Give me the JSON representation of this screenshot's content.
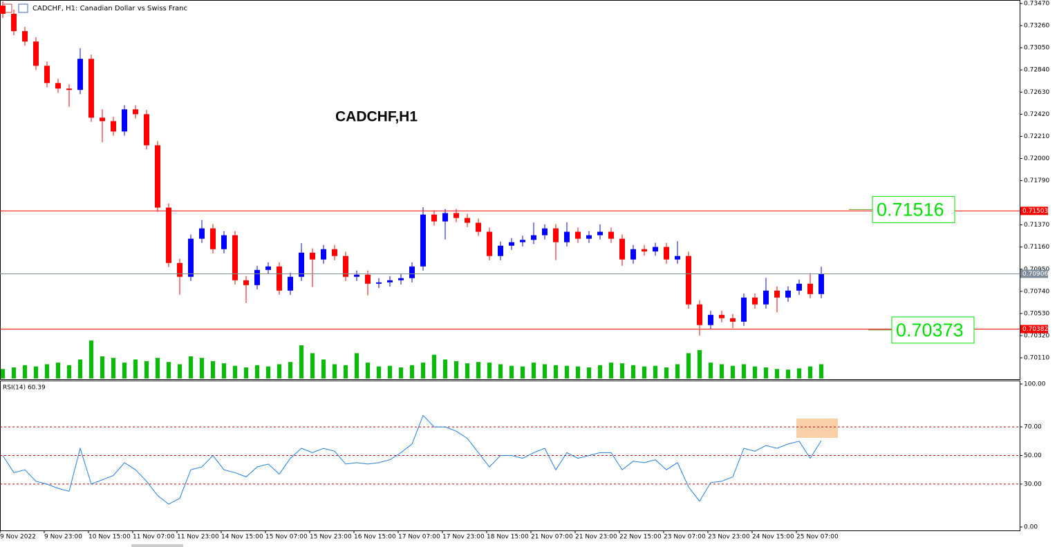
{
  "chart_data": [
    {
      "type": "candlestick",
      "title": "CADCHF, H1:  Canadian Dollar vs Swiss Franc",
      "annotation": "CADCHF,H1",
      "categories": [
        "9 Nov 2022",
        null,
        null,
        null,
        "9 Nov 23:00",
        null,
        null,
        null,
        "10 Nov 15:00",
        null,
        null,
        null,
        "11 Nov 07:00",
        null,
        null,
        null,
        "11 Nov 23:00",
        null,
        null,
        null,
        "14 Nov 15:00",
        null,
        null,
        null,
        "15 Nov 07:00",
        null,
        null,
        null,
        "15 Nov 23:00",
        null,
        null,
        null,
        "16 Nov 15:00",
        null,
        null,
        null,
        "17 Nov 07:00",
        null,
        null,
        null,
        "17 Nov 23:00",
        null,
        null,
        null,
        "18 Nov 15:00",
        null,
        null,
        null,
        "21 Nov 07:00",
        null,
        null,
        null,
        "21 Nov 23:00",
        null,
        null,
        null,
        "22 Nov 15:00",
        null,
        null,
        null,
        "23 Nov 07:00",
        null,
        null,
        null,
        "23 Nov 23:00",
        null,
        null,
        null,
        "24 Nov 15:00",
        null,
        null,
        null,
        "25 Nov 07:00",
        null,
        null
      ],
      "open": [
        0.7345,
        0.73372,
        0.73208,
        0.73109,
        0.72879,
        0.72715,
        0.72663,
        0.7265,
        0.72945,
        0.72387,
        0.72354,
        0.72256,
        0.72466,
        0.7242,
        0.72125,
        0.71534,
        0.71009,
        0.70878,
        0.71239,
        0.71337,
        0.7114,
        0.71272,
        0.70845,
        0.70799,
        0.70943,
        0.70976,
        0.70747,
        0.70878,
        0.71107,
        0.71042,
        0.7114,
        0.71075,
        0.70878,
        0.70898,
        0.70812,
        0.70825,
        0.70845,
        0.70865,
        0.70976,
        0.71468,
        0.71403,
        0.71482,
        0.71436,
        0.7139,
        0.71305,
        0.71075,
        0.71173,
        0.71206,
        0.71228,
        0.71272,
        0.71337,
        0.71206,
        0.71305,
        0.71239,
        0.71272,
        0.71305,
        0.71239,
        0.71042,
        0.7114,
        0.71118,
        0.71161,
        0.71042,
        0.71075,
        0.70616,
        0.7042,
        0.70517,
        0.70485,
        0.70452,
        0.70681,
        0.70616,
        0.70747,
        0.70681,
        0.70747,
        0.70812,
        0.70714
      ],
      "high": [
        0.7349,
        0.73412,
        0.73248,
        0.73149,
        0.72919,
        0.72755,
        0.72703,
        0.73045,
        0.72985,
        0.72467,
        0.72394,
        0.72506,
        0.72506,
        0.7246,
        0.72165,
        0.71574,
        0.71049,
        0.71279,
        0.71417,
        0.71377,
        0.71312,
        0.71312,
        0.70885,
        0.70983,
        0.71016,
        0.71016,
        0.70918,
        0.71197,
        0.71147,
        0.7118,
        0.7118,
        0.71115,
        0.70938,
        0.70938,
        0.70865,
        0.70885,
        0.70905,
        0.71016,
        0.71538,
        0.71508,
        0.71522,
        0.71522,
        0.71476,
        0.7143,
        0.71345,
        0.71213,
        0.71246,
        0.71268,
        0.71392,
        0.71377,
        0.71377,
        0.71395,
        0.71345,
        0.71312,
        0.71375,
        0.71345,
        0.71279,
        0.7118,
        0.7118,
        0.71201,
        0.71201,
        0.71215,
        0.71115,
        0.70656,
        0.70557,
        0.70557,
        0.70525,
        0.70721,
        0.70721,
        0.70867,
        0.70787,
        0.70787,
        0.70852,
        0.70912,
        0.70974
      ],
      "low": [
        0.73332,
        0.73168,
        0.73069,
        0.72839,
        0.72675,
        0.72623,
        0.7249,
        0.7261,
        0.72347,
        0.72154,
        0.72216,
        0.72216,
        0.7238,
        0.72085,
        0.71494,
        0.70969,
        0.70708,
        0.70838,
        0.71199,
        0.711,
        0.711,
        0.70805,
        0.70629,
        0.70759,
        0.70903,
        0.70707,
        0.70707,
        0.70838,
        0.70782,
        0.71002,
        0.71035,
        0.70838,
        0.70838,
        0.70702,
        0.70772,
        0.70785,
        0.70805,
        0.70825,
        0.70936,
        0.71363,
        0.71233,
        0.71396,
        0.7135,
        0.71265,
        0.71035,
        0.71035,
        0.71133,
        0.71166,
        0.71188,
        0.71232,
        0.71036,
        0.71166,
        0.71199,
        0.71199,
        0.71232,
        0.71199,
        0.70982,
        0.71002,
        0.71078,
        0.71078,
        0.71002,
        0.71002,
        0.70576,
        0.70321,
        0.7038,
        0.70445,
        0.70392,
        0.70412,
        0.70576,
        0.70576,
        0.70541,
        0.70641,
        0.70707,
        0.70674,
        0.70674
      ],
      "close": [
        0.73372,
        0.73208,
        0.73109,
        0.72879,
        0.72715,
        0.72663,
        0.7265,
        0.72945,
        0.72387,
        0.72354,
        0.72256,
        0.72466,
        0.7242,
        0.72125,
        0.71534,
        0.71009,
        0.70878,
        0.71239,
        0.71337,
        0.7114,
        0.71272,
        0.70845,
        0.70799,
        0.70943,
        0.70976,
        0.70747,
        0.70878,
        0.71107,
        0.71042,
        0.7114,
        0.71075,
        0.70878,
        0.70898,
        0.70812,
        0.70825,
        0.70845,
        0.70865,
        0.70976,
        0.71468,
        0.71403,
        0.71482,
        0.71436,
        0.7139,
        0.71305,
        0.71075,
        0.71173,
        0.71206,
        0.71228,
        0.71272,
        0.71337,
        0.71206,
        0.71305,
        0.71239,
        0.71272,
        0.71305,
        0.71239,
        0.71042,
        0.7114,
        0.71118,
        0.71161,
        0.71042,
        0.71075,
        0.70616,
        0.7042,
        0.70517,
        0.70485,
        0.70452,
        0.70681,
        0.70616,
        0.70747,
        0.70681,
        0.70747,
        0.70812,
        0.70714,
        0.70904
      ],
      "volume": [
        300,
        350,
        420,
        380,
        450,
        500,
        420,
        600,
        1200,
        700,
        650,
        500,
        600,
        550,
        650,
        520,
        450,
        700,
        650,
        550,
        480,
        400,
        350,
        420,
        380,
        450,
        520,
        1050,
        800,
        600,
        450,
        420,
        800,
        500,
        380,
        400,
        350,
        420,
        500,
        750,
        600,
        550,
        480,
        520,
        500,
        450,
        400,
        380,
        500,
        450,
        420,
        400,
        380,
        350,
        420,
        500,
        480,
        420,
        380,
        400,
        350,
        450,
        800,
        900,
        500,
        450,
        400,
        450,
        380,
        350,
        300,
        280,
        320,
        380,
        450
      ],
      "up_color": "#0000ff",
      "down_color": "#ff0000",
      "volume_color": "#00c000",
      "ylim": [
        0.69907,
        0.73503
      ],
      "yticks": [
        {
          "value": 0.7347,
          "label": "0.73470"
        },
        {
          "value": 0.7326,
          "label": "0.73260"
        },
        {
          "value": 0.7305,
          "label": "0.73050"
        },
        {
          "value": 0.7284,
          "label": "0.72840"
        },
        {
          "value": 0.7263,
          "label": "0.72630"
        },
        {
          "value": 0.7242,
          "label": "0.72420"
        },
        {
          "value": 0.7221,
          "label": "0.72210"
        },
        {
          "value": 0.72,
          "label": "0.72000"
        },
        {
          "value": 0.7179,
          "label": "0.71790"
        },
        {
          "value": 0.7137,
          "label": "0.71370"
        },
        {
          "value": 0.7116,
          "label": "0.71160"
        },
        {
          "value": 0.7095,
          "label": "0.70950"
        },
        {
          "value": 0.7074,
          "label": "0.70740"
        },
        {
          "value": 0.7053,
          "label": "0.70530"
        },
        {
          "value": 0.7032,
          "label": "0.70320"
        },
        {
          "value": 0.7011,
          "label": "0.70110"
        }
      ],
      "levels": [
        0.71503,
        0.70906,
        0.70382
      ],
      "level_colors": [
        "#ff0000",
        "#7f8c9a",
        "#ff0000"
      ],
      "callouts": [
        0.71516,
        0.70373
      ],
      "callout_color": "#00e000"
    },
    {
      "type": "line",
      "title": "RSI(14) 60.39",
      "values": [
        50,
        38,
        40,
        32,
        30,
        27,
        25,
        55,
        30,
        33,
        36,
        45,
        40,
        32,
        22,
        16,
        20,
        40,
        42,
        50,
        40,
        38,
        35,
        42,
        44,
        37,
        48,
        55,
        52,
        55,
        53,
        44,
        45,
        44,
        45,
        47,
        52,
        58,
        78,
        70,
        70,
        67,
        62,
        52,
        42,
        50,
        50,
        48,
        52,
        55,
        40,
        52,
        48,
        50,
        52,
        52,
        40,
        46,
        45,
        47,
        40,
        45,
        28,
        18,
        31,
        32,
        35,
        55,
        53,
        57,
        55,
        58,
        60,
        48,
        60.39
      ],
      "color": "#1e7fe0",
      "ylim": [
        0,
        100
      ],
      "yticks": [
        {
          "value": 100,
          "label": "100.00"
        },
        {
          "value": 70,
          "label": "70.00"
        },
        {
          "value": 50,
          "label": "50.00"
        },
        {
          "value": 30,
          "label": "30.00"
        },
        {
          "value": 0,
          "label": "0.00"
        }
      ],
      "levels": [
        70,
        50,
        30
      ],
      "level_color": "#c00000"
    }
  ]
}
